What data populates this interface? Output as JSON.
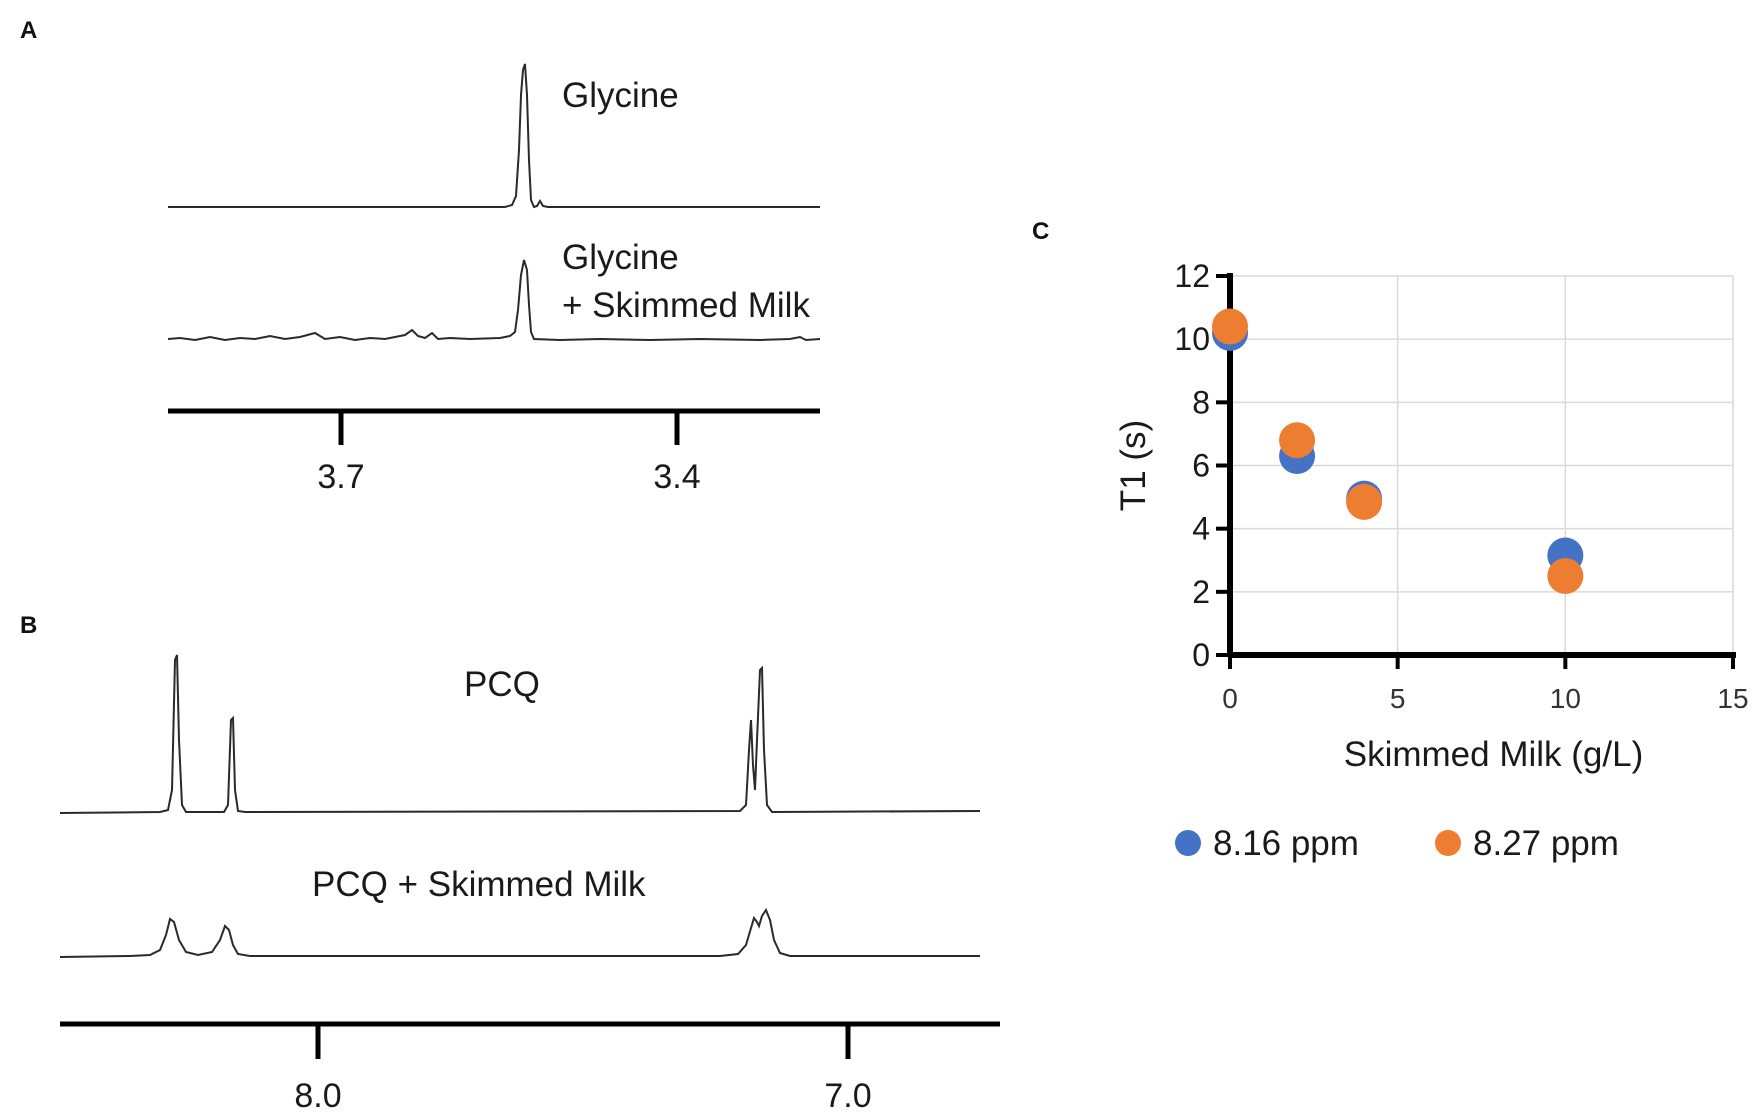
{
  "colors": {
    "series1": "#4472C4",
    "series2": "#ED7D31",
    "axis": "#000000",
    "grid": "#d9d9d9",
    "trace": "#2a2a2a"
  },
  "panel_a": {
    "letter": "A",
    "label_top": "Glycine",
    "label_bottom_line1": "Glycine",
    "label_bottom_line2": "+ Skimmed Milk",
    "ticks": [
      "3.7",
      "3.4"
    ]
  },
  "panel_b": {
    "letter": "B",
    "label_top": "PCQ",
    "label_bottom": "PCQ + Skimmed Milk",
    "ticks": [
      "8.0",
      "7.0"
    ]
  },
  "panel_c": {
    "letter": "C"
  },
  "chart_data": {
    "type": "scatter",
    "title": "",
    "xlabel": "Skimmed Milk (g/L)",
    "ylabel": "T1 (s)",
    "xlim": [
      0,
      15
    ],
    "ylim": [
      0,
      12
    ],
    "xticks": [
      0,
      5,
      10,
      15
    ],
    "yticks": [
      0,
      2,
      4,
      6,
      8,
      10,
      12
    ],
    "grid": true,
    "legend_position": "bottom",
    "series": [
      {
        "name": "8.16 ppm",
        "x": [
          0,
          2,
          4,
          10
        ],
        "y": [
          10.2,
          6.3,
          4.95,
          3.15
        ]
      },
      {
        "name": "8.27 ppm",
        "x": [
          0,
          2,
          4,
          10
        ],
        "y": [
          10.4,
          6.8,
          4.85,
          2.5
        ]
      }
    ]
  }
}
